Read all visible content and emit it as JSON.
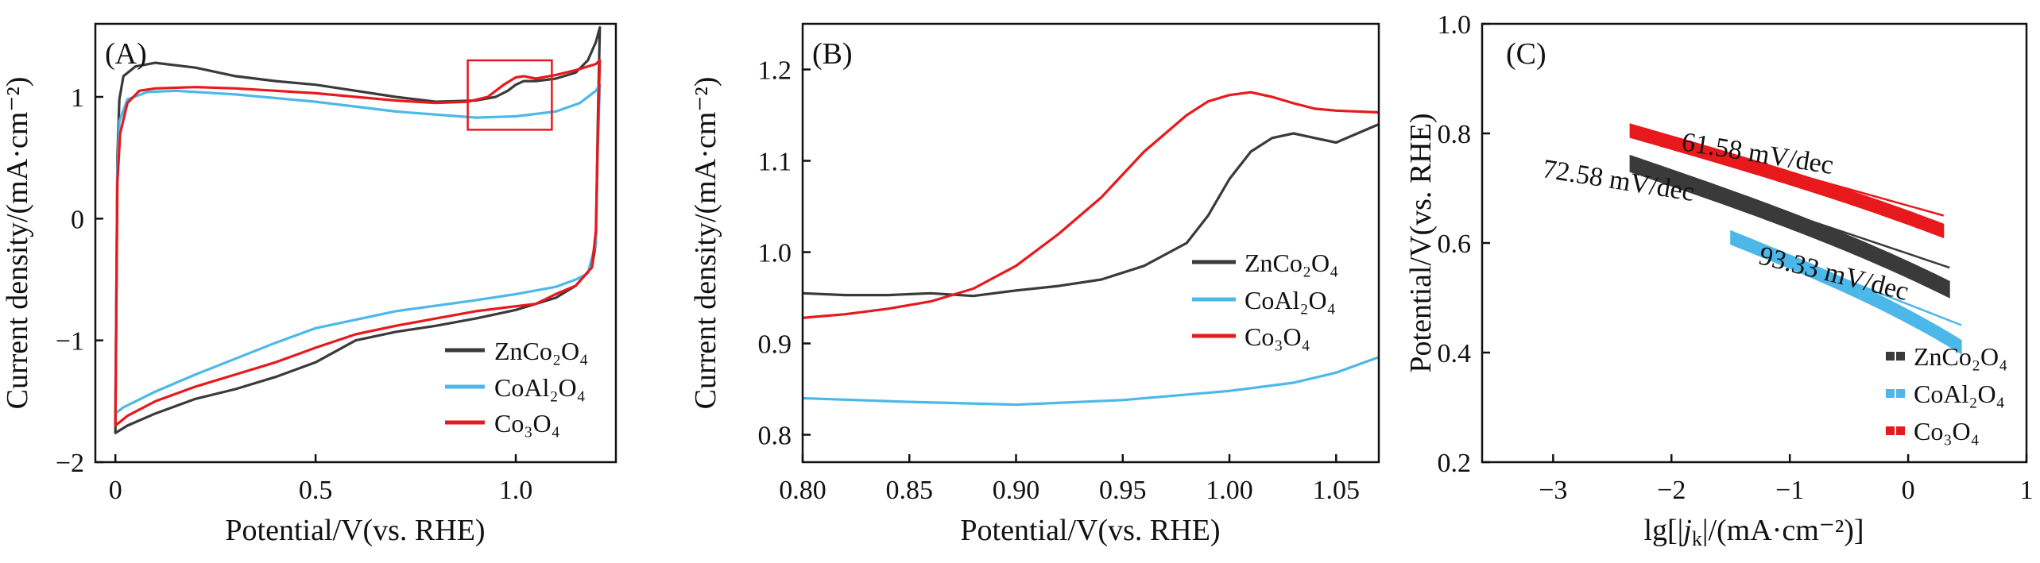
{
  "colors": {
    "ZnCo2O4": "#3a3a3a",
    "CoAl2O4": "#4cb8ea",
    "Co3O4": "#e8191c",
    "inset_box": "#e8191c",
    "axis": "#111111"
  },
  "legend_labels": {
    "ZnCo2O4": "ZnCo₂O₄",
    "CoAl2O4": "CoAl₂O₄",
    "Co3O4": "Co₃O₄"
  },
  "chart_data": [
    {
      "id": "A",
      "type": "line",
      "panel_label": "(A)",
      "xlabel": "Potential/V(vs. RHE)",
      "ylabel": "Current density/(mA·cm⁻²)",
      "xlim": [
        -0.05,
        1.25
      ],
      "ylim": [
        -2,
        1.6
      ],
      "xticks": [
        0,
        0.5,
        1.0
      ],
      "xtick_labels": [
        "0",
        "0.5",
        "1.0"
      ],
      "yticks": [
        -2,
        -1,
        0,
        1
      ],
      "ytick_labels": [
        "−2",
        "−1",
        "0",
        "1"
      ],
      "legend_position": "lower-right",
      "inset_box_xy": {
        "x": [
          0.88,
          1.09
        ],
        "y": [
          0.73,
          1.3
        ]
      },
      "series": [
        {
          "key": "ZnCo2O4",
          "name": "ZnCo₂O₄",
          "upper": [
            [
              0.0,
              -1.72
            ],
            [
              0.005,
              0.5
            ],
            [
              0.01,
              0.98
            ],
            [
              0.02,
              1.17
            ],
            [
              0.05,
              1.25
            ],
            [
              0.1,
              1.28
            ],
            [
              0.2,
              1.24
            ],
            [
              0.3,
              1.17
            ],
            [
              0.4,
              1.13
            ],
            [
              0.5,
              1.1
            ],
            [
              0.6,
              1.05
            ],
            [
              0.7,
              1.0
            ],
            [
              0.8,
              0.96
            ],
            [
              0.9,
              0.97
            ],
            [
              0.95,
              1.0
            ],
            [
              0.98,
              1.05
            ],
            [
              1.0,
              1.1
            ],
            [
              1.02,
              1.13
            ],
            [
              1.05,
              1.13
            ],
            [
              1.1,
              1.15
            ],
            [
              1.15,
              1.2
            ],
            [
              1.18,
              1.3
            ],
            [
              1.2,
              1.45
            ],
            [
              1.21,
              1.57
            ]
          ],
          "lower": [
            [
              1.21,
              1.57
            ],
            [
              1.205,
              0.8
            ],
            [
              1.2,
              -0.2
            ],
            [
              1.19,
              -0.4
            ],
            [
              1.15,
              -0.55
            ],
            [
              1.1,
              -0.65
            ],
            [
              1.0,
              -0.75
            ],
            [
              0.9,
              -0.82
            ],
            [
              0.8,
              -0.88
            ],
            [
              0.7,
              -0.93
            ],
            [
              0.6,
              -1.0
            ],
            [
              0.5,
              -1.18
            ],
            [
              0.4,
              -1.3
            ],
            [
              0.3,
              -1.4
            ],
            [
              0.2,
              -1.48
            ],
            [
              0.1,
              -1.6
            ],
            [
              0.03,
              -1.7
            ],
            [
              0.0,
              -1.76
            ]
          ]
        },
        {
          "key": "CoAl2O4",
          "name": "CoAl₂O₄",
          "upper": [
            [
              0.0,
              -1.58
            ],
            [
              0.005,
              0.4
            ],
            [
              0.01,
              0.8
            ],
            [
              0.03,
              0.98
            ],
            [
              0.08,
              1.04
            ],
            [
              0.15,
              1.05
            ],
            [
              0.3,
              1.02
            ],
            [
              0.5,
              0.96
            ],
            [
              0.7,
              0.88
            ],
            [
              0.9,
              0.83
            ],
            [
              1.0,
              0.84
            ],
            [
              1.1,
              0.88
            ],
            [
              1.16,
              0.95
            ],
            [
              1.2,
              1.05
            ],
            [
              1.21,
              1.1
            ]
          ],
          "lower": [
            [
              1.21,
              1.1
            ],
            [
              1.205,
              0.6
            ],
            [
              1.2,
              -0.2
            ],
            [
              1.18,
              -0.45
            ],
            [
              1.15,
              -0.5
            ],
            [
              1.1,
              -0.56
            ],
            [
              1.0,
              -0.62
            ],
            [
              0.9,
              -0.67
            ],
            [
              0.7,
              -0.76
            ],
            [
              0.5,
              -0.9
            ],
            [
              0.4,
              -1.02
            ],
            [
              0.3,
              -1.15
            ],
            [
              0.2,
              -1.28
            ],
            [
              0.1,
              -1.42
            ],
            [
              0.02,
              -1.55
            ],
            [
              0.0,
              -1.6
            ]
          ]
        },
        {
          "key": "Co3O4",
          "name": "Co₃O₄",
          "upper": [
            [
              0.0,
              -1.68
            ],
            [
              0.005,
              0.3
            ],
            [
              0.012,
              0.7
            ],
            [
              0.03,
              0.95
            ],
            [
              0.06,
              1.05
            ],
            [
              0.1,
              1.07
            ],
            [
              0.2,
              1.08
            ],
            [
              0.3,
              1.07
            ],
            [
              0.4,
              1.05
            ],
            [
              0.5,
              1.03
            ],
            [
              0.6,
              1.0
            ],
            [
              0.7,
              0.97
            ],
            [
              0.8,
              0.95
            ],
            [
              0.88,
              0.96
            ],
            [
              0.93,
              1.0
            ],
            [
              0.97,
              1.1
            ],
            [
              1.0,
              1.16
            ],
            [
              1.02,
              1.17
            ],
            [
              1.05,
              1.15
            ],
            [
              1.1,
              1.18
            ],
            [
              1.15,
              1.22
            ],
            [
              1.2,
              1.27
            ],
            [
              1.21,
              1.3
            ]
          ],
          "lower": [
            [
              1.21,
              1.3
            ],
            [
              1.205,
              0.7
            ],
            [
              1.2,
              -0.1
            ],
            [
              1.19,
              -0.4
            ],
            [
              1.15,
              -0.55
            ],
            [
              1.1,
              -0.62
            ],
            [
              1.05,
              -0.7
            ],
            [
              1.0,
              -0.72
            ],
            [
              0.95,
              -0.74
            ],
            [
              0.9,
              -0.76
            ],
            [
              0.8,
              -0.82
            ],
            [
              0.7,
              -0.88
            ],
            [
              0.6,
              -0.95
            ],
            [
              0.5,
              -1.06
            ],
            [
              0.4,
              -1.18
            ],
            [
              0.3,
              -1.28
            ],
            [
              0.2,
              -1.38
            ],
            [
              0.1,
              -1.5
            ],
            [
              0.03,
              -1.62
            ],
            [
              0.0,
              -1.7
            ]
          ]
        }
      ]
    },
    {
      "id": "B",
      "type": "line",
      "panel_label": "(B)",
      "xlabel": "Potential/V(vs. RHE)",
      "ylabel": "Current density/(mA·cm⁻²)",
      "xlim": [
        0.8,
        1.07
      ],
      "ylim": [
        0.77,
        1.25
      ],
      "xticks": [
        0.8,
        0.85,
        0.9,
        0.95,
        1.0,
        1.05
      ],
      "xtick_labels": [
        "0.80",
        "0.85",
        "0.90",
        "0.95",
        "1.00",
        "1.05"
      ],
      "yticks": [
        0.8,
        0.9,
        1.0,
        1.1,
        1.2
      ],
      "ytick_labels": [
        "0.8",
        "0.9",
        "1.0",
        "1.1",
        "1.2"
      ],
      "legend_position": "right",
      "series": [
        {
          "key": "ZnCo2O4",
          "name": "ZnCo₂O₄",
          "points": [
            [
              0.8,
              0.955
            ],
            [
              0.82,
              0.953
            ],
            [
              0.84,
              0.953
            ],
            [
              0.86,
              0.955
            ],
            [
              0.88,
              0.952
            ],
            [
              0.9,
              0.958
            ],
            [
              0.92,
              0.963
            ],
            [
              0.94,
              0.97
            ],
            [
              0.96,
              0.985
            ],
            [
              0.98,
              1.01
            ],
            [
              0.99,
              1.04
            ],
            [
              1.0,
              1.08
            ],
            [
              1.01,
              1.11
            ],
            [
              1.02,
              1.125
            ],
            [
              1.03,
              1.13
            ],
            [
              1.04,
              1.125
            ],
            [
              1.05,
              1.12
            ],
            [
              1.06,
              1.13
            ],
            [
              1.07,
              1.14
            ]
          ]
        },
        {
          "key": "CoAl2O4",
          "name": "CoAl₂O₄",
          "points": [
            [
              0.8,
              0.84
            ],
            [
              0.85,
              0.836
            ],
            [
              0.9,
              0.833
            ],
            [
              0.95,
              0.838
            ],
            [
              1.0,
              0.848
            ],
            [
              1.03,
              0.857
            ],
            [
              1.05,
              0.868
            ],
            [
              1.07,
              0.885
            ]
          ]
        },
        {
          "key": "Co3O4",
          "name": "Co₃O₄",
          "points": [
            [
              0.8,
              0.928
            ],
            [
              0.82,
              0.932
            ],
            [
              0.84,
              0.938
            ],
            [
              0.86,
              0.946
            ],
            [
              0.88,
              0.96
            ],
            [
              0.9,
              0.985
            ],
            [
              0.92,
              1.02
            ],
            [
              0.94,
              1.06
            ],
            [
              0.96,
              1.11
            ],
            [
              0.98,
              1.15
            ],
            [
              0.99,
              1.165
            ],
            [
              1.0,
              1.172
            ],
            [
              1.01,
              1.175
            ],
            [
              1.02,
              1.17
            ],
            [
              1.03,
              1.163
            ],
            [
              1.04,
              1.157
            ],
            [
              1.05,
              1.155
            ],
            [
              1.07,
              1.153
            ]
          ]
        }
      ]
    },
    {
      "id": "C",
      "type": "scatter",
      "panel_label": "(C)",
      "xlabel": "lg[|jk|/(mA·cm⁻²)]",
      "xlabel_parts": {
        "pre": "lg[|",
        "italic": "j",
        "sub": "k",
        "post": "|/(mA·cm⁻²)]"
      },
      "ylabel": "Potential/V(vs. RHE)",
      "xlim": [
        -3.6,
        1.0
      ],
      "ylim": [
        0.2,
        1.0
      ],
      "xticks": [
        -3,
        -2,
        -1,
        0,
        1
      ],
      "xtick_labels": [
        "−3",
        "−2",
        "−1",
        "0",
        "1"
      ],
      "yticks": [
        0.2,
        0.4,
        0.6,
        0.8,
        1.0
      ],
      "ytick_labels": [
        "0.2",
        "0.4",
        "0.6",
        "0.8",
        "1.0"
      ],
      "legend_position": "lower-right",
      "annotations": [
        "61.58 mV/dec",
        "72.58 mV/dec",
        "93.33 mV/dec"
      ],
      "series": [
        {
          "key": "ZnCo2O4",
          "name": "ZnCo₂O₄",
          "x_range": [
            -2.35,
            0.35
          ],
          "y_start": 0.745,
          "y_end": 0.545,
          "width": 0.03,
          "fit_slope": "72.58 mV/dec"
        },
        {
          "key": "CoAl2O4",
          "name": "CoAl₂O₄",
          "x_range": [
            -1.5,
            0.45
          ],
          "y_start": 0.61,
          "y_end": 0.44,
          "width": 0.025,
          "fit_slope": "93.33 mV/dec"
        },
        {
          "key": "Co3O4",
          "name": "Co₃O₄",
          "x_range": [
            -2.35,
            0.3
          ],
          "y_start": 0.805,
          "y_end": 0.64,
          "width": 0.025,
          "fit_slope": "61.58 mV/dec"
        }
      ]
    }
  ]
}
